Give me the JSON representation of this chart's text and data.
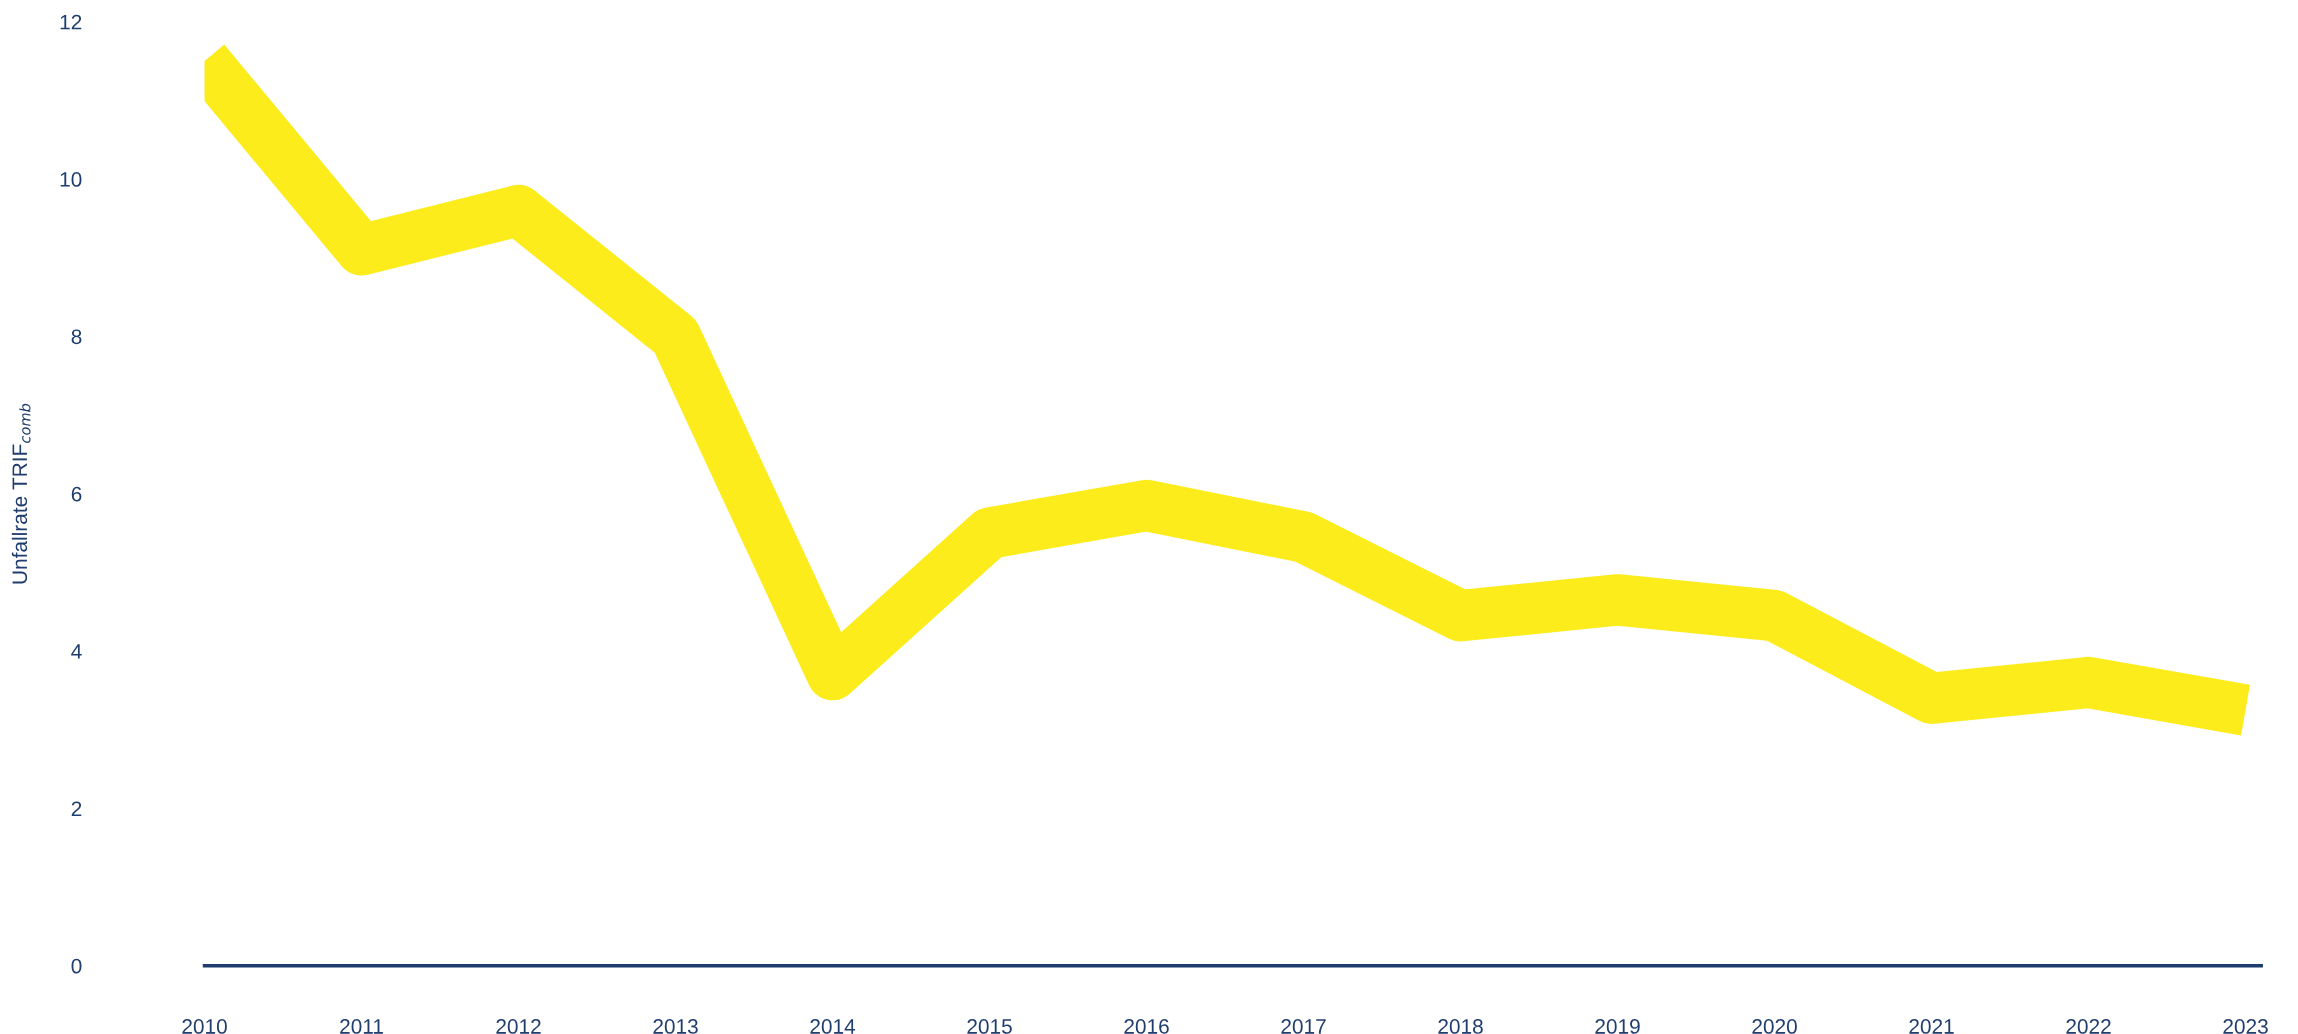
{
  "chart_data": {
    "type": "line",
    "ylabel": "Unfallrate TRIF$_{comb}$",
    "x": [
      2010,
      2011,
      2012,
      2013,
      2014,
      2015,
      2016,
      2017,
      2018,
      2019,
      2020,
      2021,
      2022,
      2023
    ],
    "series": [
      {
        "color": "#fcec1c",
        "values": [
          11.5,
          9.1,
          9.6,
          8.0,
          3.7,
          5.5,
          5.85,
          5.45,
          4.45,
          4.65,
          4.45,
          3.4,
          3.6,
          3.25
        ]
      }
    ],
    "xlim": [
      2010,
      2023.1
    ],
    "xticks": [
      2010,
      2011,
      2012,
      2013,
      2014,
      2015,
      2016,
      2017,
      2018,
      2019,
      2020,
      2021,
      2022,
      2023
    ],
    "ylim": [
      0,
      12
    ],
    "yticks": [
      0,
      2,
      4,
      6,
      8,
      10,
      12
    ],
    "grid": false,
    "legend": false,
    "marker": "none",
    "line_style": "solid"
  }
}
